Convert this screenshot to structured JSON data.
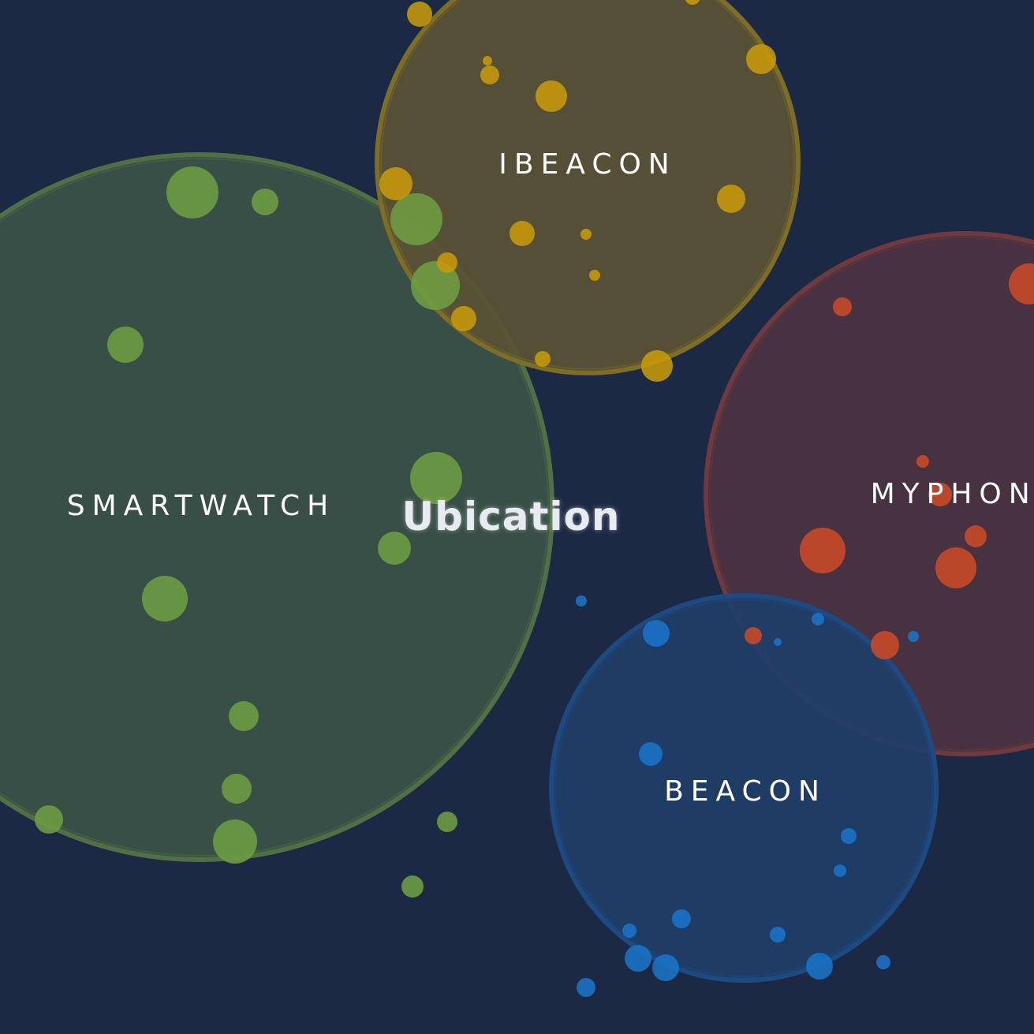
{
  "title": "Ubication",
  "clusters": [
    {
      "id": "smartwatch",
      "label": "SMARTWATCH",
      "fill": "#3a5246",
      "stroke": "#4f6f45",
      "dot_color": "#6e9e42"
    },
    {
      "id": "ibeacon",
      "label": "IBEACON",
      "fill": "#5a5235",
      "stroke": "#7d6d25",
      "dot_color": "#c79a0a"
    },
    {
      "id": "myphone",
      "label": "MYPHONE",
      "fill": "#4c3240",
      "stroke": "#6e3a3f",
      "dot_color": "#c94a26"
    },
    {
      "id": "beacon",
      "label": "BEACON",
      "fill": "#1f3e68",
      "stroke": "#1e4a82",
      "dot_color": "#1a73c8"
    }
  ]
}
